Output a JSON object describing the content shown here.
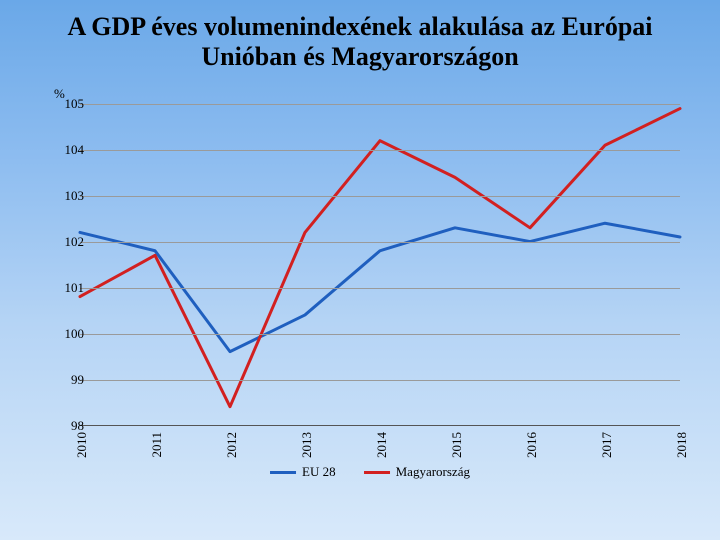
{
  "title": "A GDP éves volumenindexének alakulása az Európai Unióban és Magyarországon",
  "chart": {
    "type": "line",
    "y_unit_label": "%",
    "ylim": [
      98,
      105
    ],
    "ytick_step": 1,
    "y_ticks": [
      98,
      99,
      100,
      101,
      102,
      103,
      104,
      105
    ],
    "x_categories": [
      "2010",
      "2011",
      "2012",
      "2013",
      "2014",
      "2015",
      "2016",
      "2017",
      "2018"
    ],
    "gridline_color": "#9a9a9a",
    "background": "transparent",
    "line_width": 3,
    "series": [
      {
        "name": "EU 28",
        "color": "#1f5fbf",
        "values": [
          102.2,
          101.8,
          99.6,
          100.4,
          101.8,
          102.3,
          102.0,
          102.4,
          102.1
        ]
      },
      {
        "name": "Magyarország",
        "color": "#d22020",
        "values": [
          100.8,
          101.7,
          98.4,
          102.2,
          104.2,
          103.4,
          102.3,
          104.1,
          104.9
        ]
      }
    ],
    "legend_labels": {
      "eu": "EU 28",
      "hu": "Magyarország"
    },
    "title_fontsize": 26,
    "tick_fontsize": 13
  }
}
